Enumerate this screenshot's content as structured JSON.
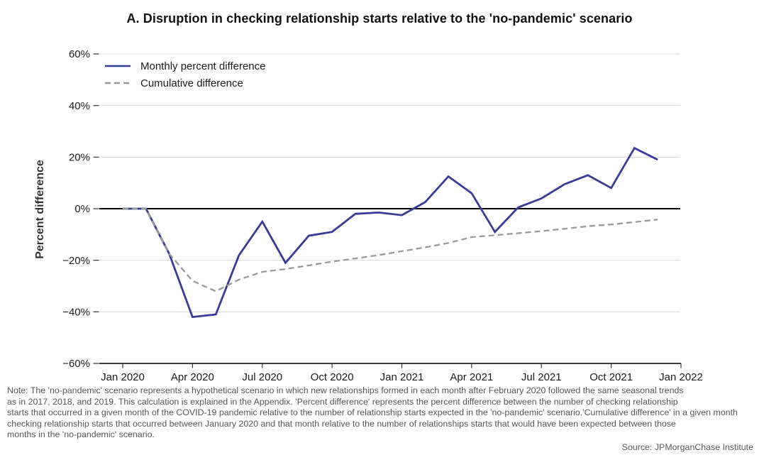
{
  "chart_data": {
    "type": "line",
    "title": "A. Disruption in checking relationship starts relative to the 'no-pandemic' scenario",
    "ylabel": "Percent difference",
    "ylim": [
      -60,
      60
    ],
    "grid": "horizontal",
    "legend_position": "top-left-inside",
    "months": [
      "Jan 2020",
      "Feb 2020",
      "Mar 2020",
      "Apr 2020",
      "May 2020",
      "Jun 2020",
      "Jul 2020",
      "Aug 2020",
      "Sep 2020",
      "Oct 2020",
      "Nov 2020",
      "Dec 2020",
      "Jan 2021",
      "Feb 2021",
      "Mar 2021",
      "Apr 2021",
      "May 2021",
      "Jun 2021",
      "Jul 2021",
      "Aug 2021",
      "Sep 2021",
      "Oct 2021",
      "Nov 2021",
      "Dec 2021"
    ],
    "x_tick_labels": [
      "Jan 2020",
      "Apr 2020",
      "Jul 2020",
      "Oct 2020",
      "Jan 2021",
      "Apr 2021",
      "Jul 2021",
      "Oct 2021",
      "Jan 2022"
    ],
    "y_tick_values": [
      60,
      40,
      20,
      0,
      -20,
      -40,
      -60
    ],
    "y_tick_labels": [
      "60%",
      "40%",
      "20%",
      "0%",
      "−20%",
      "−40%",
      "−60%"
    ],
    "series": [
      {
        "name": "Monthly percent difference",
        "style": "solid",
        "color": "#383c99",
        "values": [
          0,
          0,
          -17.5,
          -42,
          -41,
          -18,
          -5,
          -21,
          -10.5,
          -9,
          -2,
          -1.5,
          -2.5,
          2.5,
          12.5,
          6,
          -9,
          0.5,
          4,
          9.5,
          13,
          8,
          23.5,
          19
        ]
      },
      {
        "name": "Cumulative difference",
        "style": "dashed",
        "color": "#999999",
        "values": [
          0,
          0,
          -17.5,
          -28,
          -32,
          -27.5,
          -24.5,
          -23.4,
          -22,
          -20.5,
          -19.3,
          -18,
          -16.5,
          -15,
          -13.3,
          -11,
          -10.3,
          -9.5,
          -8.7,
          -7.8,
          -6.8,
          -6.1,
          -5.2,
          -4.2
        ]
      }
    ],
    "note_lines": [
      "Note: The 'no-pandemic' scenario represents a hypothetical scenario in which new relationships formed in each month after February 2020 followed the same seasonal trends",
      "as in 2017, 2018, and 2019. This calculation is explained in the Appendix. 'Percent difference' represents the percent difference between the number of checking relationship",
      "starts that occurred in a given month of the COVID-19 pandemic relative to the number of relationship starts expected in the 'no-pandemic' scenario.'Cumulative difference' in a given month",
      "checking relationship starts that occurred between January 2020 and that month relative to the number of relationships starts that would have been expected between those",
      "months in the 'no-pandemic' scenario."
    ],
    "source": "Source: JPMorganChase Institute"
  },
  "colors": {
    "gridline": "#d9d9d9",
    "axis": "#000000",
    "tick_label": "#1a1a1a"
  }
}
